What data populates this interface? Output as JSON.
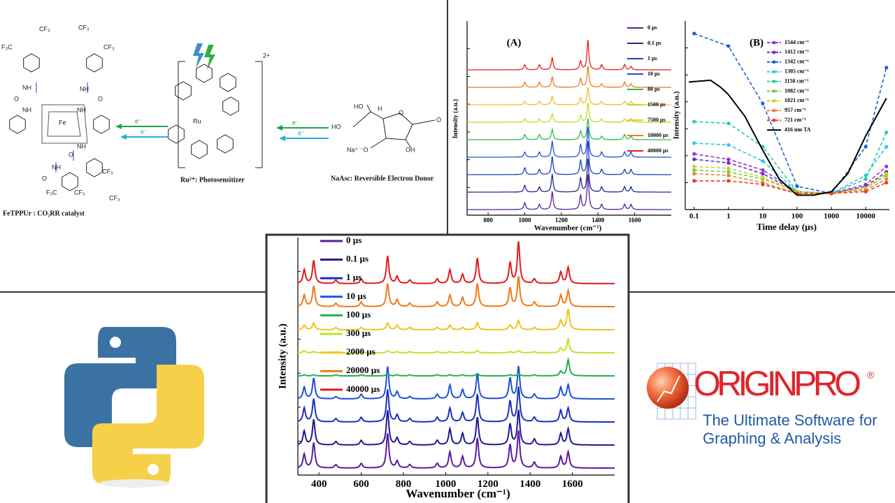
{
  "scheme": {
    "labels": [
      "CF₃",
      "F₃C",
      "NH",
      "O",
      "NH",
      "CF₃",
      "CF₃",
      "NH",
      "O",
      "NH",
      "Fe",
      "NH",
      "O",
      "NH",
      "O",
      "CF₃",
      "CF₃",
      "F₃C",
      "CF₃",
      "FeTPPUr : CO₂RR catalyst",
      "Ru",
      "2+",
      "Ru²⁺: Photosensitizer",
      "e⁻",
      "e⁻",
      "e⁻",
      "e⁻",
      "HO",
      "H",
      "HO",
      "O",
      "O",
      "Na⁺ ⁻O",
      "OH",
      "NaAsc: Reversible Electron Donor"
    ]
  },
  "chart_data": [
    {
      "type": "spectrum",
      "panel": "(A)",
      "xlabel": "Wavenumber (cm⁻¹)",
      "ylabel": "Intensity (a.u.)",
      "xlim": [
        685,
        1800
      ],
      "xticks": [
        800,
        1000,
        1200,
        1400,
        1600
      ],
      "ylim": [
        -0.32,
        10.8
      ],
      "peak_positions": [
        1000,
        1080,
        1150,
        1305,
        1345,
        1420,
        1545,
        1580
      ],
      "series": [
        {
          "name": "0 µs",
          "color": "#5a1fa0",
          "values": [
            0.4,
            0.3,
            1.0,
            0.8,
            2.0,
            0.3,
            0.3,
            0.3
          ]
        },
        {
          "name": "0.1 µs",
          "color": "#1c2a8c",
          "values": [
            0.4,
            0.3,
            1.0,
            0.8,
            1.9,
            0.3,
            0.3,
            0.3
          ]
        },
        {
          "name": "1 µs",
          "color": "#1c3fc0",
          "values": [
            0.4,
            0.3,
            1.0,
            0.8,
            1.9,
            0.3,
            0.3,
            0.3
          ]
        },
        {
          "name": "10 µs",
          "color": "#2050d8",
          "values": [
            0.3,
            0.3,
            0.9,
            0.7,
            1.7,
            0.3,
            0.3,
            0.3
          ]
        },
        {
          "name": "80 µs",
          "color": "#2eb84a",
          "values": [
            0.3,
            0.3,
            0.6,
            0.5,
            1.2,
            0.2,
            0.3,
            0.2
          ]
        },
        {
          "name": "1500 µs",
          "color": "#b8dc28",
          "values": [
            0.2,
            0.2,
            0.5,
            0.4,
            1.1,
            0.2,
            0.2,
            0.2
          ]
        },
        {
          "name": "7500 µs",
          "color": "#f0c020",
          "values": [
            0.2,
            0.2,
            0.5,
            0.4,
            1.0,
            0.2,
            0.2,
            0.2
          ]
        },
        {
          "name": "10000 µs",
          "color": "#f07820",
          "values": [
            0.3,
            0.3,
            0.6,
            0.5,
            1.2,
            0.2,
            0.3,
            0.2
          ]
        },
        {
          "name": "40000 µs",
          "color": "#e02020",
          "values": [
            0.3,
            0.3,
            0.7,
            0.5,
            1.7,
            0.3,
            0.3,
            0.2
          ]
        }
      ]
    },
    {
      "type": "line",
      "panel": "(B)",
      "xlabel": "Time delay (µs)",
      "ylabel": "Intensity (a.u.)",
      "xscale": "log",
      "xlim": [
        0.055,
        49000
      ],
      "xticks": [
        0.1,
        1,
        10,
        100,
        1000,
        10000
      ],
      "ylim": [
        -0.05,
        1
      ],
      "series": [
        {
          "name": "1544 cm⁻¹",
          "color": "#9932cc",
          "linestyle": "dashed",
          "marker": "circle",
          "x": [
            0.1,
            1,
            10,
            100,
            1000,
            10000,
            40000
          ],
          "values": [
            0.26,
            0.23,
            0.17,
            0.05,
            0.04,
            0.09,
            0.19
          ]
        },
        {
          "name": "1412 cm⁻¹",
          "color": "#6a2bd0",
          "linestyle": "dashed",
          "marker": "circle",
          "x": [
            0.1,
            1,
            10,
            100,
            1000,
            10000,
            40000
          ],
          "values": [
            0.23,
            0.21,
            0.15,
            0.05,
            0.04,
            0.08,
            0.16
          ]
        },
        {
          "name": "1342 cm⁻¹",
          "color": "#2060d0",
          "linestyle": "dashed",
          "marker": "circle",
          "x": [
            0.1,
            1,
            10,
            100,
            1000,
            10000,
            40000
          ],
          "values": [
            0.93,
            0.86,
            0.54,
            0.08,
            0.04,
            0.3,
            0.74
          ]
        },
        {
          "name": "1305 cm⁻¹",
          "color": "#2ec6e0",
          "linestyle": "dashed",
          "marker": "circle",
          "x": [
            0.1,
            1,
            10,
            100,
            1000,
            10000,
            40000
          ],
          "values": [
            0.32,
            0.31,
            0.22,
            0.05,
            0.04,
            0.14,
            0.3
          ]
        },
        {
          "name": "1150 cm⁻¹",
          "color": "#20d0a0",
          "linestyle": "dashed",
          "marker": "circle",
          "x": [
            0.1,
            1,
            10,
            100,
            1000,
            10000,
            40000
          ],
          "values": [
            0.44,
            0.43,
            0.3,
            0.05,
            0.04,
            0.12,
            0.38
          ]
        },
        {
          "name": "1082 cm⁻¹",
          "color": "#70d040",
          "linestyle": "dashed",
          "marker": "circle",
          "x": [
            0.1,
            1,
            10,
            100,
            1000,
            10000,
            40000
          ],
          "values": [
            0.17,
            0.16,
            0.12,
            0.05,
            0.04,
            0.07,
            0.14
          ]
        },
        {
          "name": "1021 cm⁻¹",
          "color": "#d0d020",
          "linestyle": "dashed",
          "marker": "circle",
          "x": [
            0.1,
            1,
            10,
            100,
            1000,
            10000,
            40000
          ],
          "values": [
            0.19,
            0.18,
            0.13,
            0.05,
            0.04,
            0.07,
            0.15
          ]
        },
        {
          "name": "957 cm⁻¹",
          "color": "#f08030",
          "linestyle": "dashed",
          "marker": "circle",
          "x": [
            0.1,
            1,
            10,
            100,
            1000,
            10000,
            40000
          ],
          "values": [
            0.15,
            0.14,
            0.1,
            0.04,
            0.04,
            0.06,
            0.12
          ]
        },
        {
          "name": "721 cm⁻¹",
          "color": "#e04020",
          "linestyle": "dashed",
          "marker": "circle",
          "x": [
            0.1,
            1,
            10,
            100,
            1000,
            10000,
            40000
          ],
          "values": [
            0.11,
            0.11,
            0.09,
            0.04,
            0.04,
            0.05,
            0.1
          ]
        },
        {
          "name": "416 nm TA",
          "color": "#000000",
          "linestyle": "solid",
          "x": [
            0.07,
            0.3,
            0.6,
            1,
            3,
            10,
            30,
            100,
            300,
            1000,
            3000,
            10000,
            40000
          ],
          "values": [
            0.66,
            0.67,
            0.63,
            0.59,
            0.47,
            0.28,
            0.12,
            0.03,
            0.03,
            0.05,
            0.15,
            0.36,
            0.57
          ]
        }
      ]
    },
    {
      "type": "spectrum",
      "xlabel": "Wavenumber (cm⁻¹)",
      "ylabel": "Intensity (a.u.)",
      "xlim": [
        300,
        1800
      ],
      "xticks": [
        400,
        600,
        800,
        1000,
        1200,
        1400,
        1600
      ],
      "ylim": [
        -0.3,
        10
      ],
      "peak_positions": [
        330,
        375,
        480,
        600,
        725,
        770,
        830,
        960,
        1020,
        1080,
        1150,
        1305,
        1345,
        1420,
        1545,
        1580
      ],
      "series": [
        {
          "name": "0 µs",
          "color": "#5b1a9e",
          "values": [
            0.6,
            1.1,
            0.15,
            0.2,
            1.5,
            0.3,
            0.15,
            0.2,
            0.7,
            0.5,
            1.3,
            1.0,
            1.6,
            0.25,
            0.5,
            0.7
          ]
        },
        {
          "name": "0.1 µs",
          "color": "#1b1b8f",
          "values": [
            0.6,
            1.1,
            0.15,
            0.2,
            1.5,
            0.3,
            0.15,
            0.2,
            0.7,
            0.5,
            1.2,
            0.9,
            1.5,
            0.25,
            0.5,
            0.7
          ]
        },
        {
          "name": "1 µs",
          "color": "#1a2fbf",
          "values": [
            0.6,
            1.0,
            0.15,
            0.2,
            1.4,
            0.3,
            0.15,
            0.2,
            0.6,
            0.4,
            1.2,
            0.9,
            1.5,
            0.2,
            0.5,
            0.6
          ]
        },
        {
          "name": "10 µs",
          "color": "#1f4fd6",
          "values": [
            0.5,
            0.9,
            0.1,
            0.2,
            1.4,
            0.3,
            0.1,
            0.2,
            0.6,
            0.4,
            1.1,
            0.9,
            1.4,
            0.2,
            0.5,
            0.6
          ]
        },
        {
          "name": "100 µs",
          "color": "#22b04b",
          "values": [
            0.05,
            0.05,
            0.05,
            0.05,
            0.1,
            0.05,
            0.05,
            0.05,
            0.05,
            0.05,
            0.1,
            0.05,
            0.1,
            0.05,
            0.2,
            0.7
          ]
        },
        {
          "name": "300 µs",
          "color": "#c6e02a",
          "values": [
            0.1,
            0.05,
            0.05,
            0.05,
            0.1,
            0.05,
            0.05,
            0.05,
            0.05,
            0.05,
            0.1,
            0.05,
            0.1,
            0.05,
            0.2,
            0.6
          ]
        },
        {
          "name": "2000 µs",
          "color": "#f2c21b",
          "values": [
            0.2,
            0.3,
            0.1,
            0.1,
            0.3,
            0.2,
            0.1,
            0.1,
            0.2,
            0.1,
            0.3,
            0.2,
            0.4,
            0.1,
            0.4,
            0.9
          ]
        },
        {
          "name": "20000 µs",
          "color": "#f07a18",
          "values": [
            0.5,
            0.9,
            0.15,
            0.2,
            1.0,
            0.3,
            0.15,
            0.2,
            0.5,
            0.4,
            1.0,
            0.8,
            1.3,
            0.2,
            0.5,
            0.7
          ]
        },
        {
          "name": "40000 µs",
          "color": "#e01b1b",
          "values": [
            0.6,
            1.0,
            0.15,
            0.2,
            1.2,
            0.3,
            0.15,
            0.2,
            0.6,
            0.4,
            1.1,
            0.9,
            1.8,
            0.2,
            0.5,
            0.7
          ]
        }
      ]
    }
  ],
  "logos": {
    "origin": {
      "name": "ORIGINPRO",
      "mark": "®",
      "tagline": [
        "The Ultimate Software for",
        "Graphing & Analysis"
      ]
    }
  }
}
